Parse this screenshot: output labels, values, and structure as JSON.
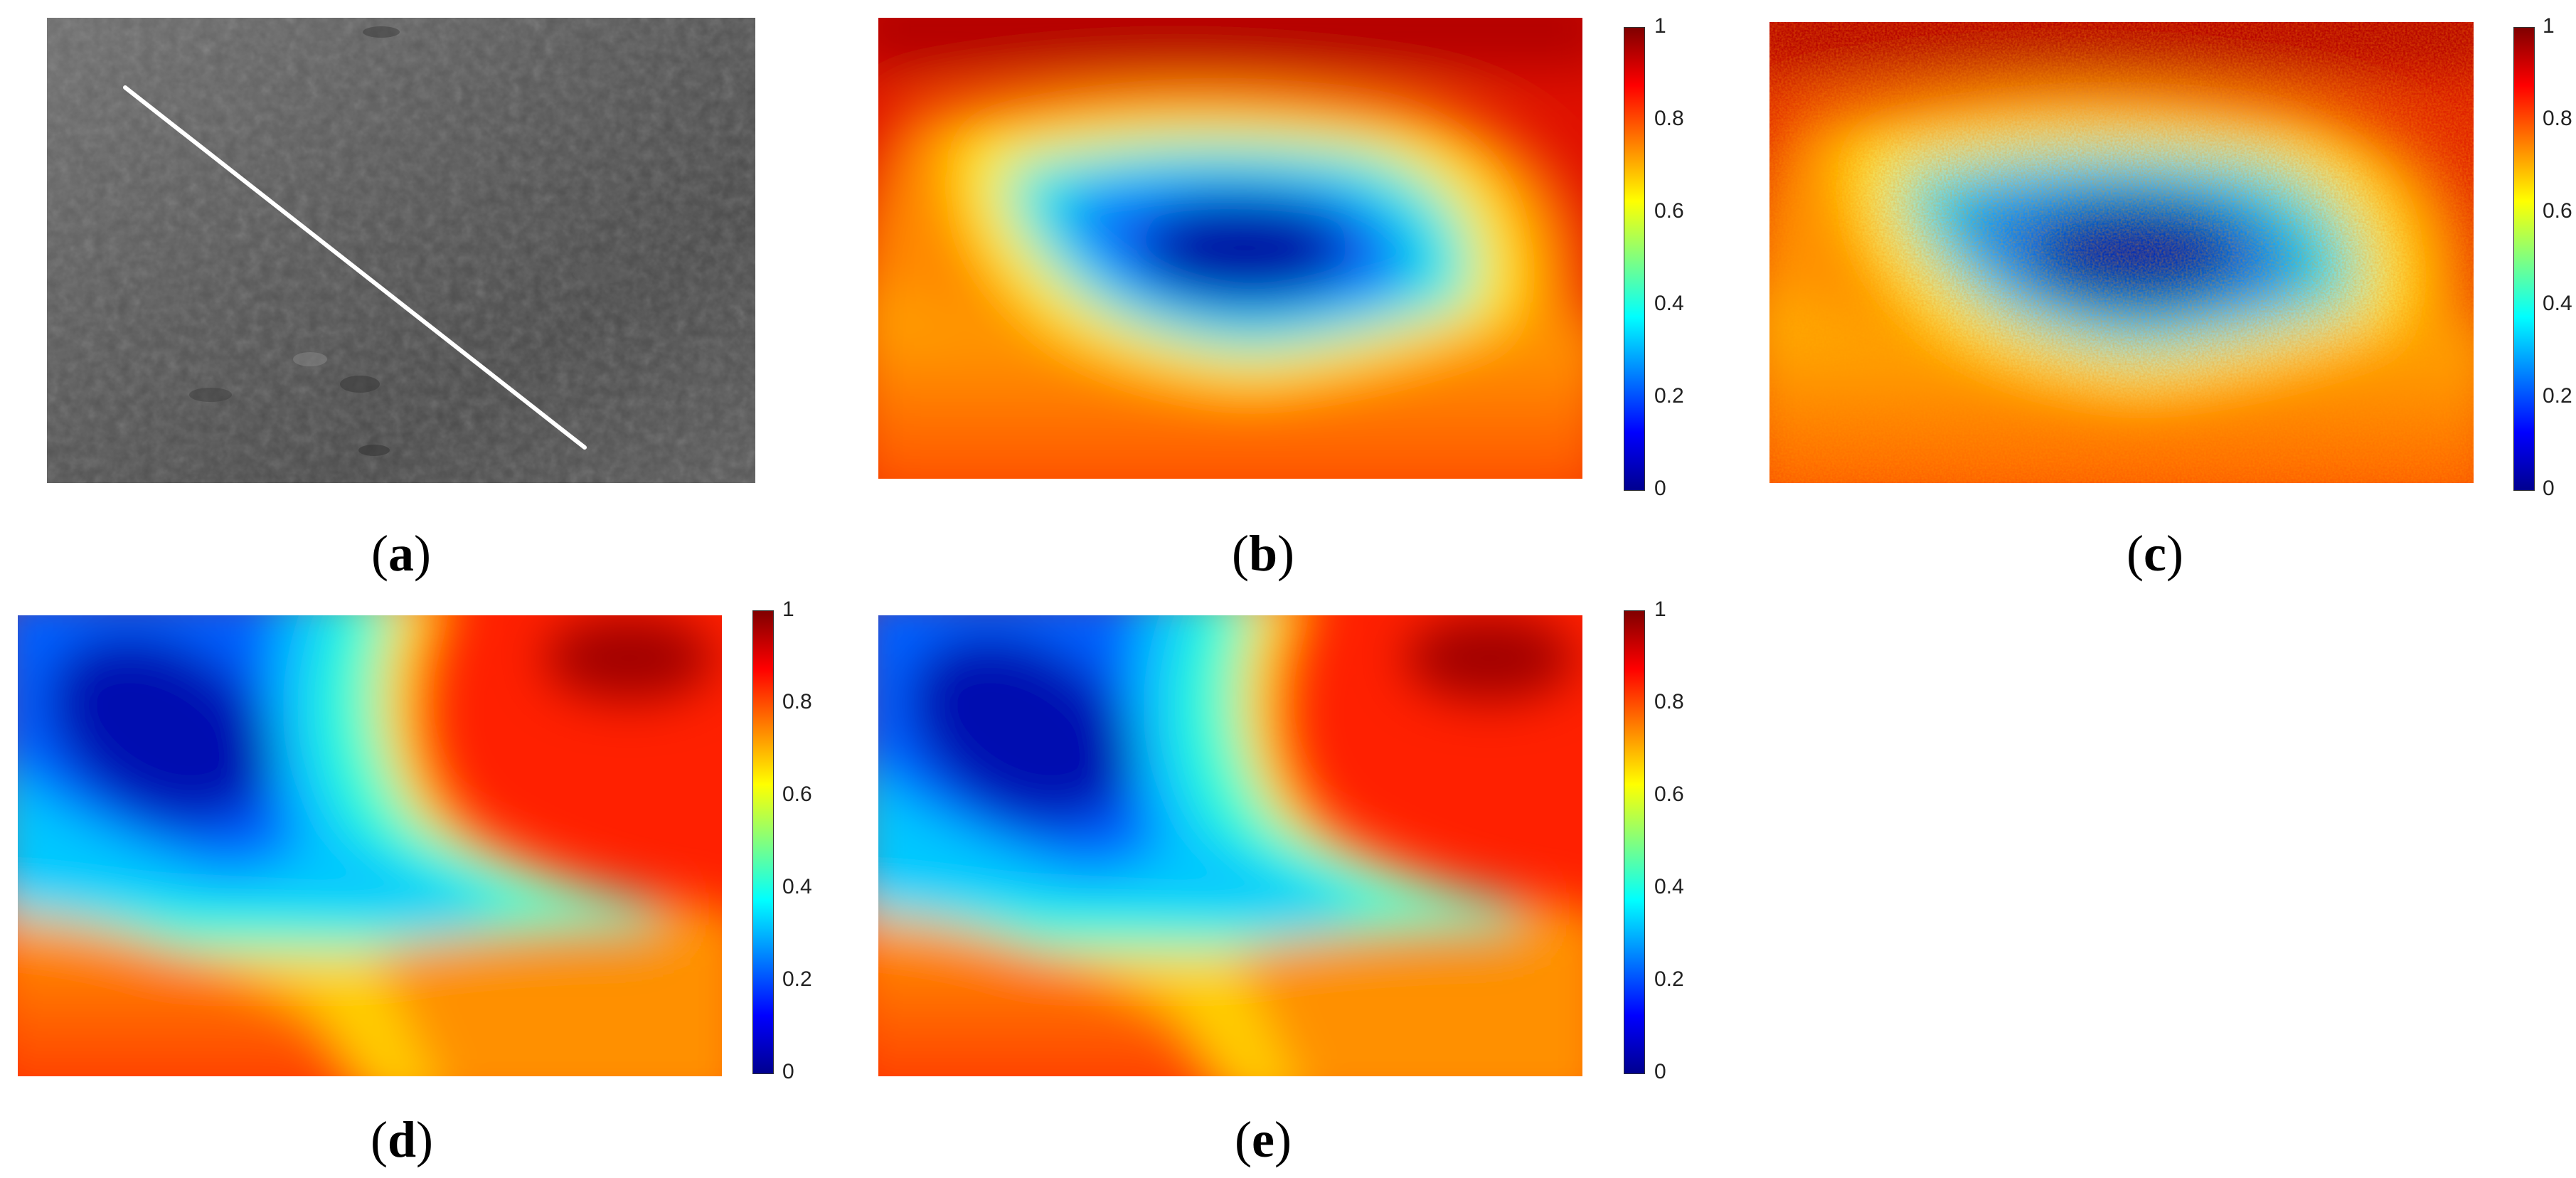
{
  "panels": [
    {
      "id": "a",
      "label": "a",
      "type": "grayscale-photo"
    },
    {
      "id": "b",
      "label": "b",
      "type": "heatmap"
    },
    {
      "id": "c",
      "label": "c",
      "type": "heatmap-noisy"
    },
    {
      "id": "d",
      "label": "d",
      "type": "heatmap"
    },
    {
      "id": "e",
      "label": "e",
      "type": "heatmap"
    }
  ],
  "colorbar": {
    "ticks": [
      "0",
      "0.2",
      "0.4",
      "0.6",
      "0.8",
      "1"
    ],
    "colormap": "jet"
  },
  "chart_data": {
    "type": "heatmap",
    "colorbar_range": [
      0,
      1
    ]
  }
}
